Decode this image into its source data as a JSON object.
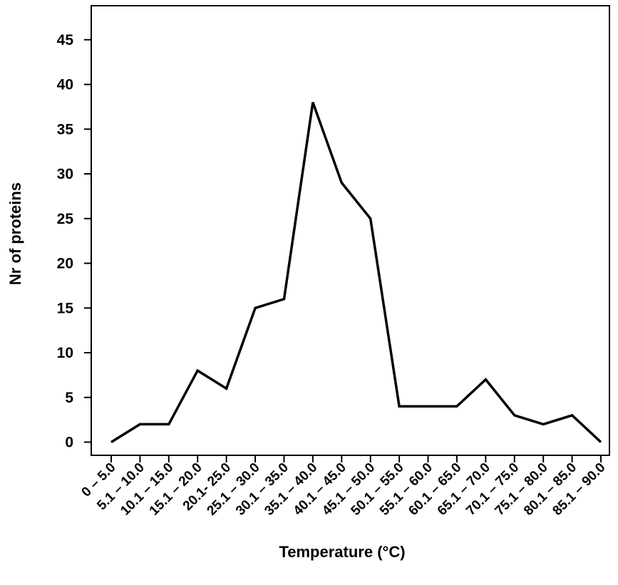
{
  "chart_data": {
    "type": "line",
    "title": "",
    "xlabel": "Temperature (°C)",
    "ylabel": "Nr of proteins",
    "categories": [
      "0 – 5.0",
      "5.1 – 10.0",
      "10.1 – 15.0",
      "15.1 – 20.0",
      "20.1- 25.0",
      "25.1 – 30.0",
      "30.1 – 35.0",
      "35.1 – 40.0",
      "40.1 – 45.0",
      "45.1 – 50.0",
      "50.1 – 55.0",
      "55.1 – 60.0",
      "60.1 – 65.0",
      "65.1 – 70.0",
      "70.1 – 75.0",
      "75.1 – 80.0",
      "80.1 – 85.0",
      "85.1 – 90.0"
    ],
    "values": [
      0,
      2,
      2,
      8,
      6,
      15,
      16,
      38,
      29,
      25,
      4,
      4,
      4,
      7,
      3,
      2,
      3,
      0
    ],
    "ylim": [
      -1.5,
      49
    ],
    "yticks": [
      0,
      5,
      10,
      15,
      20,
      25,
      30,
      35,
      40,
      45
    ],
    "grid": false,
    "legend": "none",
    "line_color": "#000000"
  }
}
